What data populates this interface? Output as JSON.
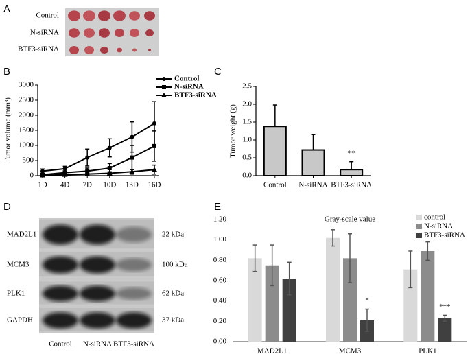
{
  "panel_labels": [
    "A",
    "B",
    "C",
    "D",
    "E"
  ],
  "panel_a": {
    "rows": [
      "Control",
      "N-siRNA",
      "BTF3-siRNA"
    ]
  },
  "panel_d": {
    "rows": [
      "MAD2L1",
      "MCM3",
      "PLK1",
      "GAPDH"
    ],
    "sizes": [
      "22 kDa",
      "100 kDa",
      "62 kDa",
      "37 kDa"
    ],
    "lanes": [
      "Control",
      "N-siRNA",
      "BTF3-siRNA"
    ]
  },
  "chart_data": [
    {
      "type": "line",
      "y_label": "Tumor volume (mm³)",
      "categories": [
        "1D",
        "4D",
        "7D",
        "10D",
        "13D",
        "16D"
      ],
      "series": [
        {
          "name": "Control",
          "color": "#000000",
          "values": [
            150,
            230,
            600,
            920,
            1280,
            1730
          ],
          "errors": [
            70,
            80,
            280,
            300,
            500,
            720
          ]
        },
        {
          "name": "N-siRNA",
          "color": "#000000",
          "values": [
            30,
            100,
            150,
            250,
            600,
            980
          ],
          "errors": [
            30,
            60,
            100,
            150,
            400,
            500
          ]
        },
        {
          "name": "BTF3-siRNA",
          "color": "#000000",
          "values": [
            10,
            30,
            50,
            80,
            130,
            200
          ],
          "errors": [
            10,
            20,
            30,
            50,
            80,
            150
          ]
        }
      ],
      "ylim": [
        0,
        3000
      ],
      "yticks": [
        0,
        500,
        1000,
        1500,
        2000,
        2500,
        3000
      ],
      "legend": "upper-right"
    },
    {
      "type": "bar",
      "y_label": "Tumor weight (g)",
      "categories": [
        "Control",
        "N-siRNA",
        "BTF3-siRNA"
      ],
      "values": [
        1.38,
        0.72,
        0.17
      ],
      "errors": [
        0.6,
        0.43,
        0.22
      ],
      "color": "#c8c8c8",
      "annotation": "**",
      "ylim": [
        0,
        2.5
      ],
      "yticks": [
        {
          "value": 0,
          "label": "0.0"
        },
        0.5,
        {
          "value": 1,
          "label": "1.0"
        },
        1.5,
        {
          "value": 2,
          "label": "2.0"
        },
        2.5
      ]
    },
    {
      "type": "grouped-bar",
      "title": "Gray-scale value",
      "categories": [
        "MAD2L1",
        "MCM3",
        "PLK1"
      ],
      "series": [
        {
          "name": "control",
          "color": "#d9d9d9",
          "values": [
            0.82,
            1.02,
            0.71
          ],
          "errors": [
            0.13,
            0.08,
            0.18
          ]
        },
        {
          "name": "N-siRNA",
          "color": "#8c8c8c",
          "values": [
            0.75,
            0.82,
            0.89
          ],
          "errors": [
            0.2,
            0.24,
            0.09
          ]
        },
        {
          "name": "BTF3-siRNA",
          "color": "#404040",
          "values": [
            0.62,
            0.21,
            0.23
          ],
          "errors": [
            0.16,
            0.11,
            0.03
          ]
        }
      ],
      "annotations": [
        "*",
        "***"
      ],
      "ylim": [
        0,
        1.2
      ],
      "yticks": [
        {
          "value": 0,
          "label": "0.00"
        },
        {
          "value": 0.2,
          "label": "0.20"
        },
        {
          "value": 0.4,
          "label": "0.40"
        },
        {
          "value": 0.6,
          "label": "0.60"
        },
        {
          "value": 0.8,
          "label": "0.80"
        },
        {
          "value": 1,
          "label": "1.00"
        },
        {
          "value": 1.2,
          "label": "1.20"
        }
      ],
      "legend": "upper-right"
    }
  ]
}
